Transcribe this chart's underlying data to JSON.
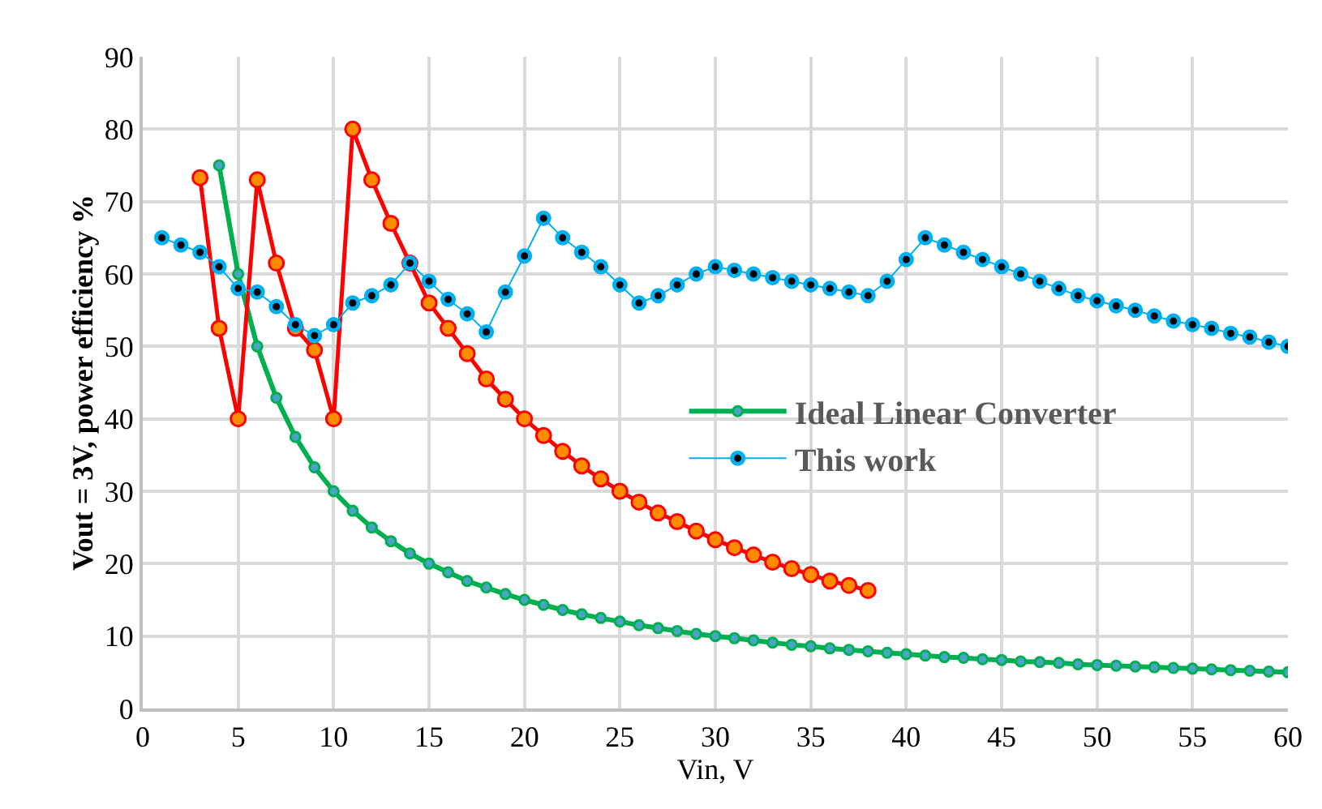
{
  "chart_data": {
    "type": "line",
    "xlabel": "Vin, V",
    "ylabel": "Vout = 3V, power efficiency %",
    "xlim": [
      0,
      60
    ],
    "xticks": [
      0,
      5,
      10,
      15,
      20,
      25,
      30,
      35,
      40,
      45,
      50,
      55,
      60
    ],
    "ylim": [
      0,
      90
    ],
    "yticks": [
      0,
      10,
      20,
      30,
      40,
      50,
      60,
      70,
      80,
      90
    ],
    "grid": true,
    "legend": "right",
    "marker": "circle",
    "line_style": "solid",
    "series": [
      {
        "name": "Ideal Linear Converter",
        "color": "#00b050",
        "x": [
          4,
          5,
          6,
          7,
          8,
          9,
          10,
          11,
          12,
          13,
          14,
          15,
          16,
          17,
          18,
          19,
          20,
          21,
          22,
          23,
          24,
          25,
          26,
          27,
          28,
          29,
          30,
          31,
          32,
          33,
          34,
          35,
          36,
          37,
          38,
          39,
          40,
          41,
          42,
          43,
          44,
          45,
          46,
          47,
          48,
          49,
          50,
          51,
          52,
          53,
          54,
          55,
          56,
          57,
          58,
          59,
          60
        ],
        "values": [
          75,
          60,
          50,
          42.9,
          37.5,
          33.3,
          30,
          27.3,
          25,
          23.1,
          21.4,
          20,
          18.8,
          17.6,
          16.7,
          15.8,
          15,
          14.3,
          13.6,
          13,
          12.5,
          12,
          11.5,
          11.1,
          10.7,
          10.3,
          10,
          9.7,
          9.4,
          9.1,
          8.8,
          8.6,
          8.3,
          8.1,
          7.9,
          7.7,
          7.5,
          7.3,
          7.1,
          7,
          6.8,
          6.7,
          6.5,
          6.4,
          6.3,
          6.1,
          6,
          5.9,
          5.8,
          5.7,
          5.6,
          5.5,
          5.4,
          5.3,
          5.2,
          5.1,
          5
        ]
      },
      {
        "color": "#ff0000",
        "x": [
          3,
          4,
          5,
          6,
          7,
          8,
          9,
          10,
          11,
          12,
          13,
          14,
          15,
          16,
          17,
          18,
          19,
          20,
          21,
          22,
          23,
          24,
          25,
          26,
          27,
          28,
          29,
          30,
          31,
          32,
          33,
          34,
          35,
          36,
          37,
          38
        ],
        "values": [
          73.3,
          52.5,
          40,
          73,
          61.5,
          52.5,
          49.5,
          40,
          80,
          73,
          67,
          61.5,
          56,
          52.5,
          49,
          45.5,
          42.7,
          40,
          37.7,
          35.5,
          33.5,
          31.7,
          30,
          28.5,
          27,
          25.8,
          24.5,
          23.3,
          22.2,
          21.2,
          20.2,
          19.3,
          18.5,
          17.6,
          17,
          16.3
        ]
      },
      {
        "name": "This work",
        "color": "#00b0f0",
        "x": [
          1,
          2,
          3,
          4,
          5,
          6,
          7,
          8,
          9,
          10,
          11,
          12,
          13,
          14,
          15,
          16,
          17,
          18,
          19,
          20,
          21,
          22,
          23,
          24,
          25,
          26,
          27,
          28,
          29,
          30,
          31,
          32,
          33,
          34,
          35,
          36,
          37,
          38,
          39,
          40,
          41,
          42,
          43,
          44,
          45,
          46,
          47,
          48,
          49,
          50,
          51,
          52,
          53,
          54,
          55,
          56,
          57,
          58,
          59,
          60
        ],
        "values": [
          65,
          64,
          63,
          61,
          58,
          57.5,
          55.5,
          53,
          51.5,
          53,
          56,
          57,
          58.5,
          61.5,
          59,
          56.5,
          54.5,
          52,
          57.5,
          62.5,
          67.7,
          65,
          63,
          61,
          58.5,
          56,
          57,
          58.5,
          60,
          61,
          60.5,
          60,
          59.5,
          59,
          58.5,
          58,
          57.5,
          57,
          59,
          62,
          65,
          64,
          63,
          62,
          61,
          60,
          59,
          58,
          57,
          56.3,
          55.6,
          55,
          54.2,
          53.5,
          53,
          52.5,
          51.8,
          51.3,
          50.6,
          50
        ]
      }
    ]
  }
}
